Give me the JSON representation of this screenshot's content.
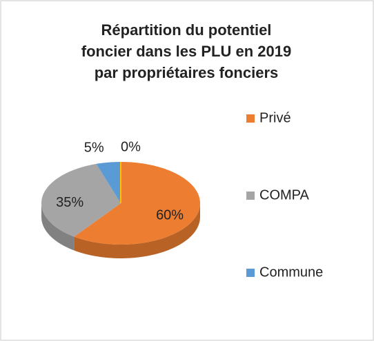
{
  "chart_data": {
    "type": "pie",
    "title": [
      "Répartition du potentiel",
      "foncier dans les PLU en 2019",
      "par propriétaires fonciers"
    ],
    "categories": [
      "Privé",
      "COMPA",
      "Commune",
      null
    ],
    "values": [
      60,
      35,
      5,
      0
    ],
    "value_labels": [
      "60%",
      "35%",
      "5%",
      "0%"
    ],
    "colors": [
      "#ed7d31",
      "#a5a5a5",
      "#5b9bd5",
      "#ffc000"
    ],
    "legend": "right"
  }
}
